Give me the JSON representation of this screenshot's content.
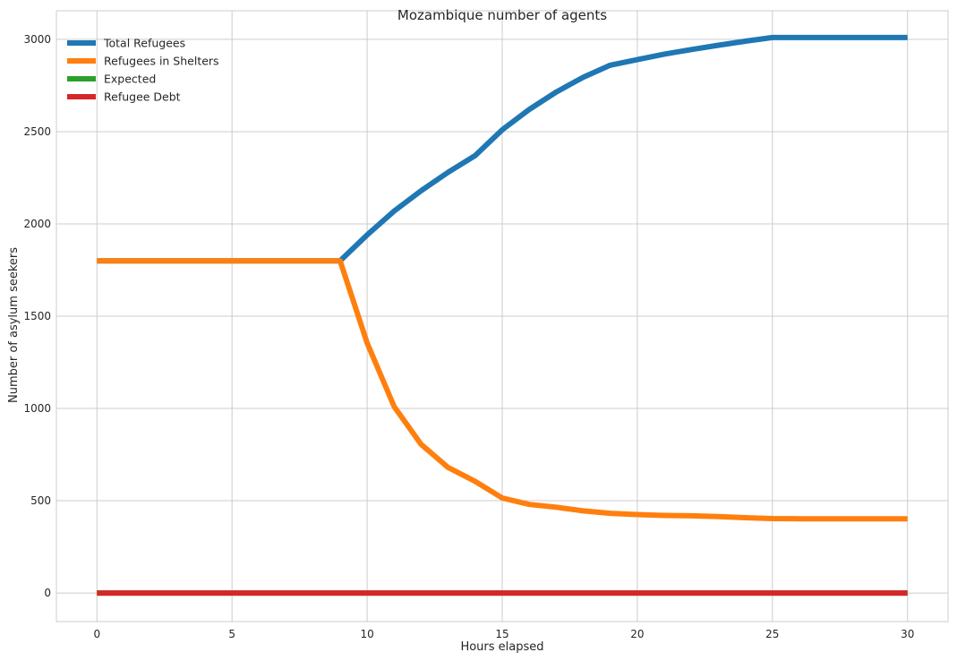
{
  "chart_data": {
    "type": "line",
    "title": "Mozambique number of agents",
    "xlabel": "Hours elapsed",
    "ylabel": "Number of asylum seekers",
    "xlim": [
      -1.5,
      31.5
    ],
    "ylim": [
      -155,
      3155
    ],
    "xticks": [
      0,
      5,
      10,
      15,
      20,
      25,
      30
    ],
    "yticks": [
      0,
      500,
      1000,
      1500,
      2000,
      2500,
      3000
    ],
    "grid": true,
    "legend_position": "top-left",
    "x": [
      0,
      1,
      2,
      3,
      4,
      5,
      6,
      7,
      8,
      9,
      10,
      11,
      12,
      13,
      14,
      15,
      16,
      17,
      18,
      19,
      20,
      21,
      22,
      23,
      24,
      25,
      26,
      27,
      28,
      29,
      30
    ],
    "series": [
      {
        "name": "Total Refugees",
        "color": "#1f77b4",
        "values": [
          1800,
          1800,
          1800,
          1800,
          1800,
          1800,
          1800,
          1800,
          1800,
          1800,
          1940,
          2070,
          2180,
          2280,
          2370,
          2510,
          2620,
          2715,
          2795,
          2860,
          2890,
          2920,
          2945,
          2968,
          2990,
          3010,
          3010,
          3010,
          3010,
          3010,
          3010
        ]
      },
      {
        "name": "Refugees in Shelters",
        "color": "#ff7f0e",
        "values": [
          1800,
          1800,
          1800,
          1800,
          1800,
          1800,
          1800,
          1800,
          1800,
          1800,
          1355,
          1010,
          805,
          680,
          605,
          515,
          480,
          465,
          445,
          432,
          425,
          420,
          418,
          414,
          408,
          403,
          402,
          402,
          402,
          402,
          402
        ]
      },
      {
        "name": "Expected",
        "color": "#2ca02c",
        "values": [
          0,
          0,
          0,
          0,
          0,
          0,
          0,
          0,
          0,
          0,
          0,
          0,
          0,
          0,
          0,
          0,
          0,
          0,
          0,
          0,
          0,
          0,
          0,
          0,
          0,
          0,
          0,
          0,
          0,
          0,
          0
        ]
      },
      {
        "name": "Refugee Debt",
        "color": "#d62728",
        "values": [
          0,
          0,
          0,
          0,
          0,
          0,
          0,
          0,
          0,
          0,
          0,
          0,
          0,
          0,
          0,
          0,
          0,
          0,
          0,
          0,
          0,
          0,
          0,
          0,
          0,
          0,
          0,
          0,
          0,
          0,
          0
        ]
      }
    ]
  }
}
